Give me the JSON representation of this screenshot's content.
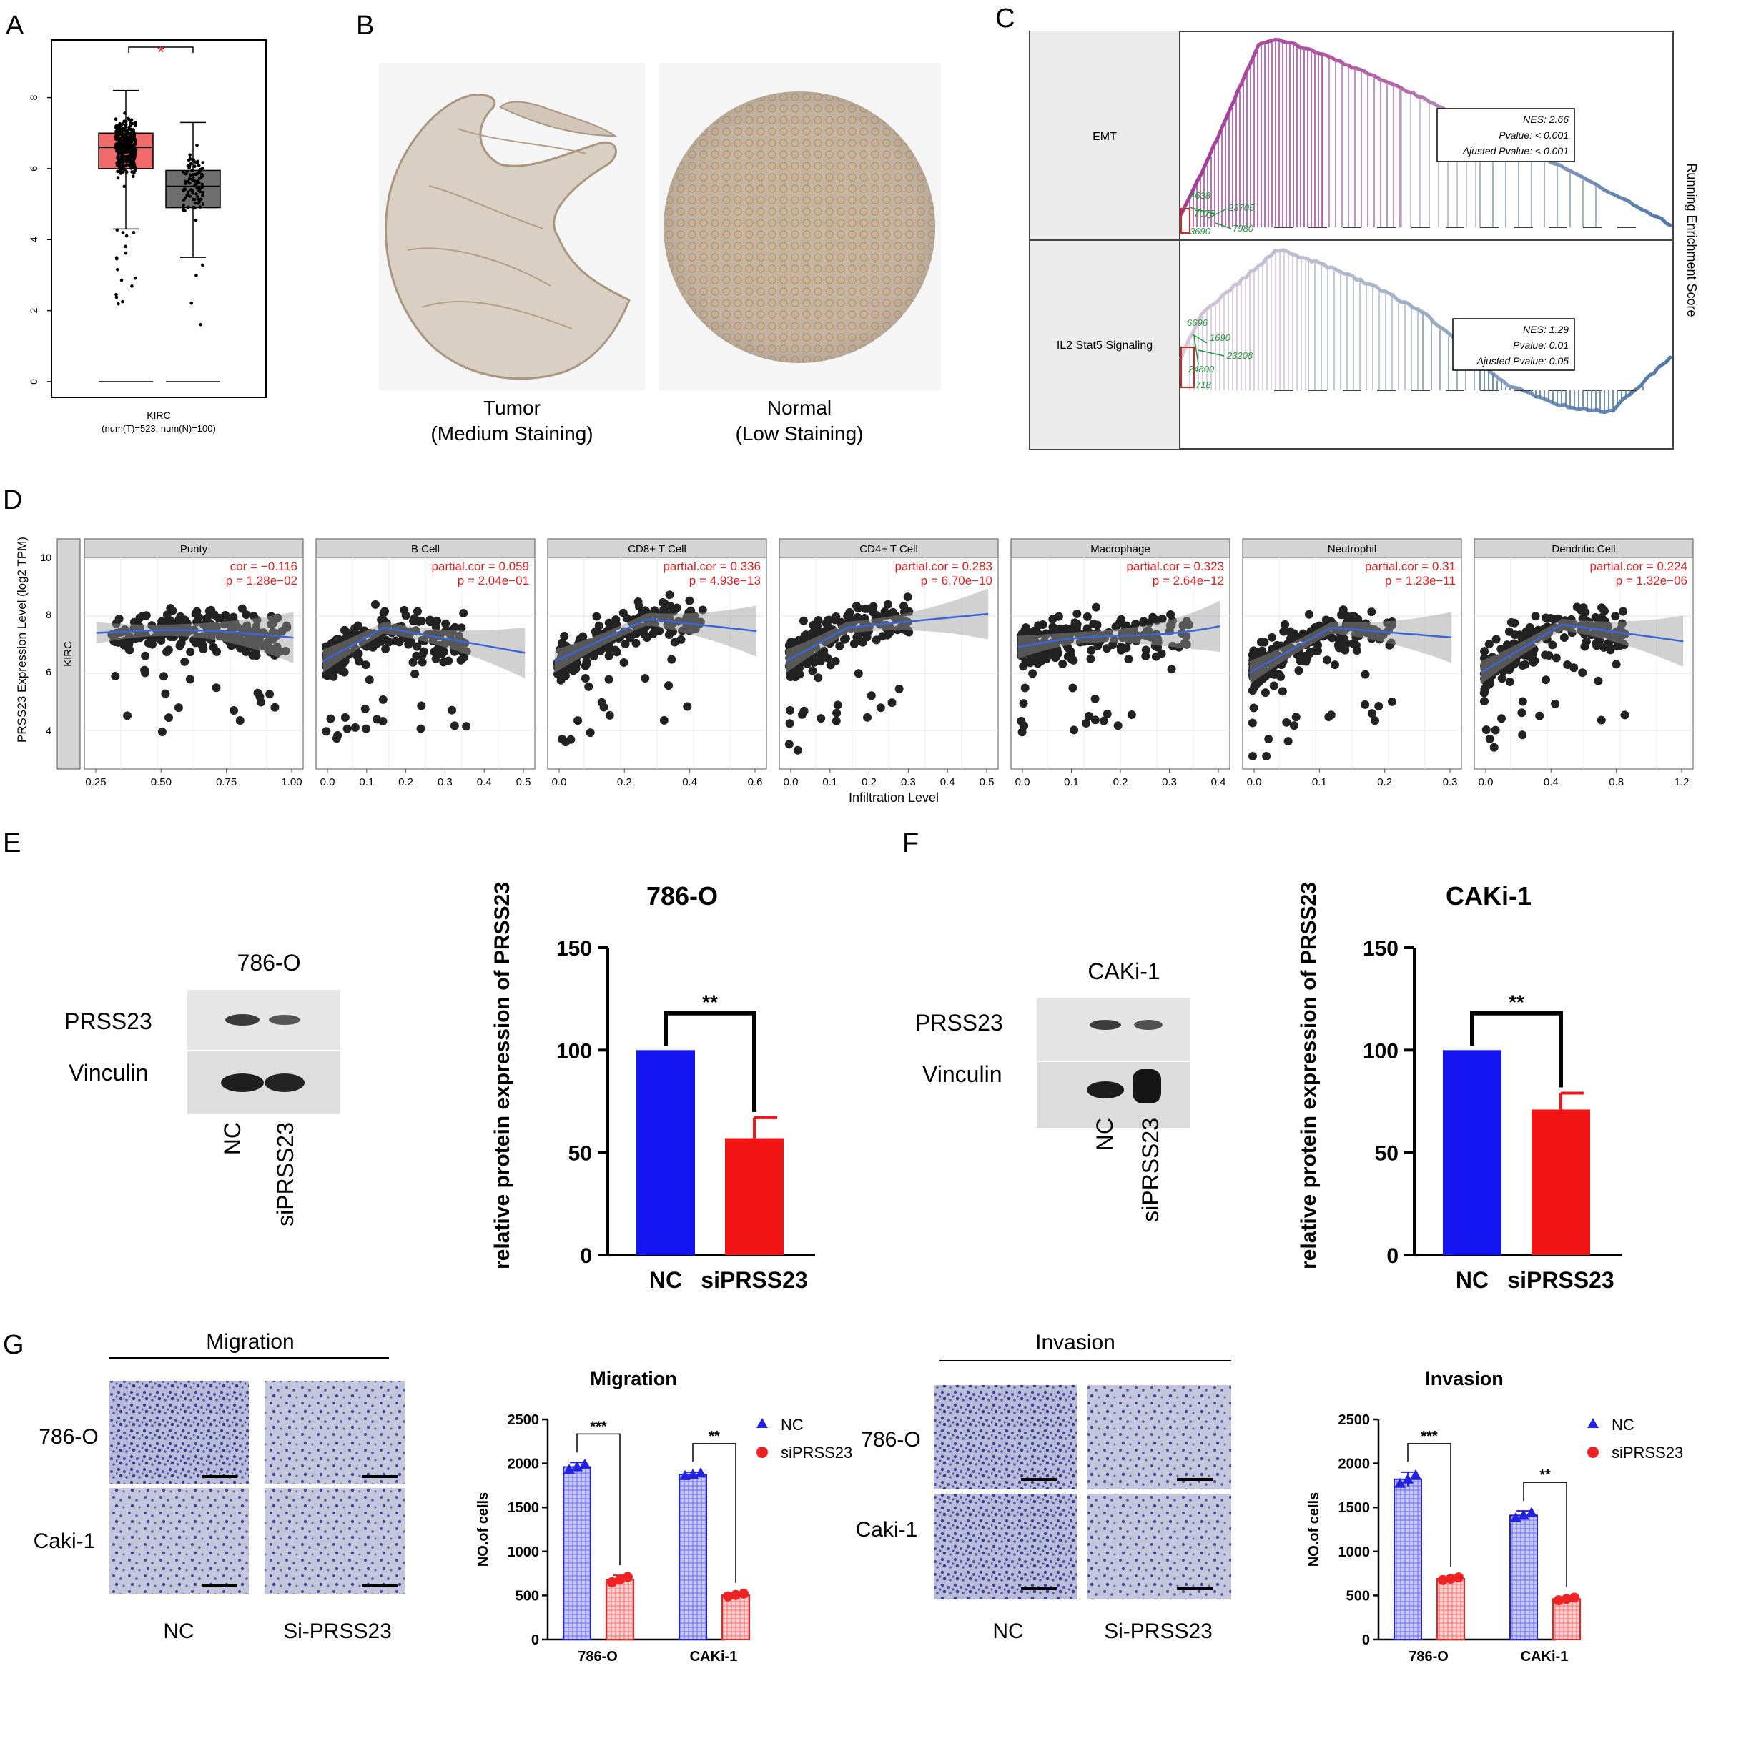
{
  "panels": {
    "A": {
      "letter": "A",
      "sig": "*",
      "yticks": [
        "0",
        "2",
        "4",
        "6",
        "8"
      ],
      "xlabel": "KIRC",
      "xsub": "(num(T)=523; num(N)=100)",
      "colors": {
        "tumor": "#f26b6b",
        "normal": "#6e6e6e",
        "sig": "#e02020"
      },
      "chart_data": {
        "type": "box",
        "ylim": [
          0,
          9.3
        ],
        "series": [
          {
            "box": [
              6.0,
              6.6,
              7.0
            ],
            "whisker": [
              4.3,
              8.2
            ],
            "zero": 0
          },
          {
            "box": [
              4.9,
              5.5,
              5.95
            ],
            "whisker": [
              3.5,
              7.3
            ],
            "zero": 0
          }
        ]
      }
    },
    "B": {
      "letter": "B",
      "tumor_line1": "Tumor",
      "tumor_line2": "(Medium Staining)",
      "normal_line1": "Normal",
      "normal_line2": "(Low Staining)"
    },
    "C": {
      "letter": "C",
      "ylabel": "Running Enrichment Score",
      "rows": [
        {
          "name": "EMT",
          "nes": "NES: 2.66",
          "pval": "Pvalue: < 0.001",
          "apval": "Ajusted Pvalue: < 0.001",
          "genes": [
            "4638",
            "7075",
            "23705",
            "3690",
            "7980"
          ]
        },
        {
          "name": "IL2 Stat5 Signaling",
          "nes": "NES: 1.29",
          "pval": "Pvalue: 0.01",
          "apval": "Ajusted Pvalue: 0.05",
          "genes": [
            "6696",
            "1690",
            "23208",
            "24800",
            "718"
          ]
        }
      ],
      "colors": {
        "emt": "#a03a9a",
        "il2_start": "#c9b9d4",
        "il2_end": "#4f77a8",
        "gene": "#1f9a3a"
      }
    },
    "D": {
      "letter": "D",
      "ylabel": "PRSS23 Expression Level (log2 TPM)",
      "xlabel": "Infiltration Level",
      "strip": "KIRC",
      "yticks": [
        "4",
        "6",
        "8",
        "10"
      ],
      "panels": [
        {
          "title": "Purity",
          "line1": "cor = −0.116",
          "line2": "p = 1.28e−02",
          "xticks": [
            "0.25",
            "0.50",
            "0.75",
            "1.00"
          ]
        },
        {
          "title": "B Cell",
          "line1": "partial.cor = 0.059",
          "line2": "p = 2.04e−01",
          "xticks": [
            "0.0",
            "0.1",
            "0.2",
            "0.3",
            "0.4",
            "0.5"
          ]
        },
        {
          "title": "CD8+ T Cell",
          "line1": "partial.cor = 0.336",
          "line2": "p = 4.93e−13",
          "xticks": [
            "0.0",
            "0.2",
            "0.4",
            "0.6"
          ]
        },
        {
          "title": "CD4+ T Cell",
          "line1": "partial.cor = 0.283",
          "line2": "p = 6.70e−10",
          "xticks": [
            "0.0",
            "0.1",
            "0.2",
            "0.3",
            "0.4",
            "0.5"
          ]
        },
        {
          "title": "Macrophage",
          "line1": "partial.cor = 0.323",
          "line2": "p = 2.64e−12",
          "xticks": [
            "0.0",
            "0.1",
            "0.2",
            "0.3",
            "0.4"
          ]
        },
        {
          "title": "Neutrophil",
          "line1": "partial.cor = 0.31",
          "line2": "p = 1.23e−11",
          "xticks": [
            "0.0",
            "0.1",
            "0.2",
            "0.3"
          ]
        },
        {
          "title": "Dendritic Cell",
          "line1": "partial.cor = 0.224",
          "line2": "p = 1.32e−06",
          "xticks": [
            "0.0",
            "0.4",
            "0.8",
            "1.2"
          ]
        }
      ]
    },
    "E": {
      "letter": "E",
      "blot_title": "786-O",
      "row1": "PRSS23",
      "row2": "Vinculin",
      "lane1": "NC",
      "lane2": "siPRSS23",
      "chart_title": "786-O",
      "ylabel": "relative protein expression of PRSS23",
      "sig": "**",
      "yticks": [
        "0",
        "50",
        "100",
        "150"
      ],
      "chart_data": {
        "type": "bar",
        "categories": [
          "NC",
          "siPRSS23"
        ],
        "values": [
          100,
          57
        ],
        "errors": [
          0,
          10
        ],
        "ylim": [
          0,
          150
        ]
      }
    },
    "F": {
      "letter": "F",
      "blot_title": "CAKi-1",
      "row1": "PRSS23",
      "row2": "Vinculin",
      "lane1": "NC",
      "lane2": "siPRSS23",
      "chart_title": "CAKi-1",
      "ylabel": "relative protein expression of PRSS23",
      "sig": "**",
      "yticks": [
        "0",
        "50",
        "100",
        "150"
      ],
      "chart_data": {
        "type": "bar",
        "categories": [
          "NC",
          "siPRSS23"
        ],
        "values": [
          100,
          71
        ],
        "errors": [
          0,
          8
        ],
        "ylim": [
          0,
          150
        ]
      }
    },
    "G": {
      "letter": "G",
      "migration_header": "Migration",
      "invasion_header": "Invasion",
      "row1": "786-O",
      "row2": "Caki-1",
      "col1": "NC",
      "col2": "Si-PRSS23",
      "charts": [
        {
          "title": "Migration",
          "ylabel": "NO.of cells",
          "legend": [
            "NC",
            "siPRSS23"
          ],
          "sig": [
            "***",
            "**"
          ],
          "yticks": [
            "0",
            "500",
            "1000",
            "1500",
            "2000",
            "2500"
          ],
          "categories": [
            "786-O",
            "CAKi-1"
          ],
          "chart_data": {
            "type": "bar",
            "ylim": [
              0,
              2500
            ],
            "series": [
              {
                "name": "NC",
                "values": [
                  1960,
                  1875
                ],
                "errors": [
                  50,
                  25
                ]
              },
              {
                "name": "siPRSS23",
                "values": [
                  680,
                  505
                ],
                "errors": [
                  50,
                  25
                ]
              }
            ]
          }
        },
        {
          "title": "Invasion",
          "ylabel": "NO.of cells",
          "legend": [
            "NC",
            "siPRSS23"
          ],
          "sig": [
            "***",
            "**"
          ],
          "yticks": [
            "0",
            "500",
            "1000",
            "1500",
            "2000",
            "2500"
          ],
          "categories": [
            "786-O",
            "CAKi-1"
          ],
          "chart_data": {
            "type": "bar",
            "ylim": [
              0,
              2500
            ],
            "series": [
              {
                "name": "NC",
                "values": [
                  1820,
                  1410
                ],
                "errors": [
                  80,
                  50
                ]
              },
              {
                "name": "siPRSS23",
                "values": [
                  690,
                  460
                ],
                "errors": [
                  25,
                  25
                ]
              }
            ]
          }
        }
      ],
      "colors": {
        "nc": "#2222e0",
        "si": "#ee2222",
        "stain": "#4f52a6"
      }
    }
  }
}
